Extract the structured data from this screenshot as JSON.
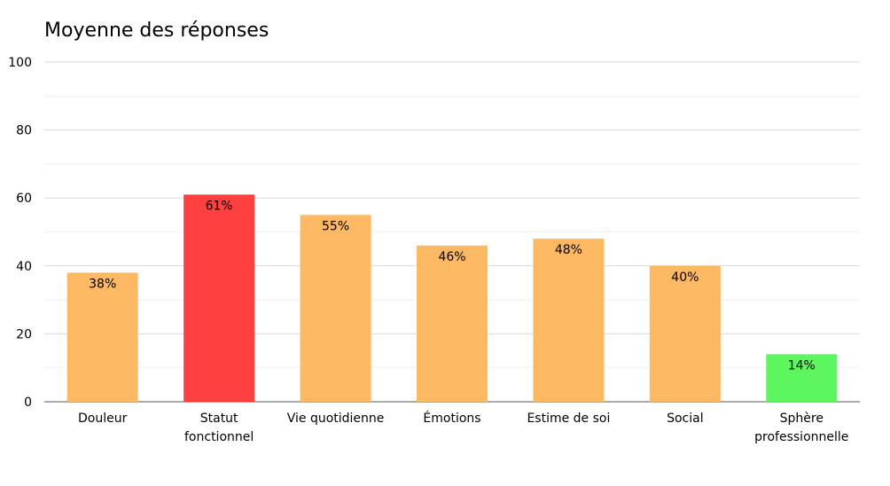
{
  "chart_data": {
    "type": "bar",
    "title": "Moyenne des réponses",
    "xlabel": "",
    "ylabel": "",
    "ylim": [
      0,
      100
    ],
    "yticks": [
      "0",
      "20",
      "40",
      "60",
      "80",
      "100"
    ],
    "yticks_values": [
      0,
      20,
      40,
      60,
      80,
      100
    ],
    "grid": true,
    "legend": "none",
    "categories": [
      [
        "Douleur"
      ],
      [
        "Statut",
        "fonctionnel"
      ],
      [
        "Vie quotidienne"
      ],
      [
        "Émotions"
      ],
      [
        "Estime de soi"
      ],
      [
        "Social"
      ],
      [
        "Sphère",
        "professionnelle"
      ]
    ],
    "values": [
      38,
      61,
      55,
      46,
      48,
      40,
      14
    ],
    "data_labels": [
      "38%",
      "61%",
      "55%",
      "46%",
      "48%",
      "40%",
      "14%"
    ],
    "colors": [
      "#FDB863",
      "#FF4040",
      "#FDB863",
      "#FDB863",
      "#FDB863",
      "#FDB863",
      "#5EF65E"
    ],
    "gridline_color": "#D9D9D9",
    "axis_color": "#555555"
  }
}
